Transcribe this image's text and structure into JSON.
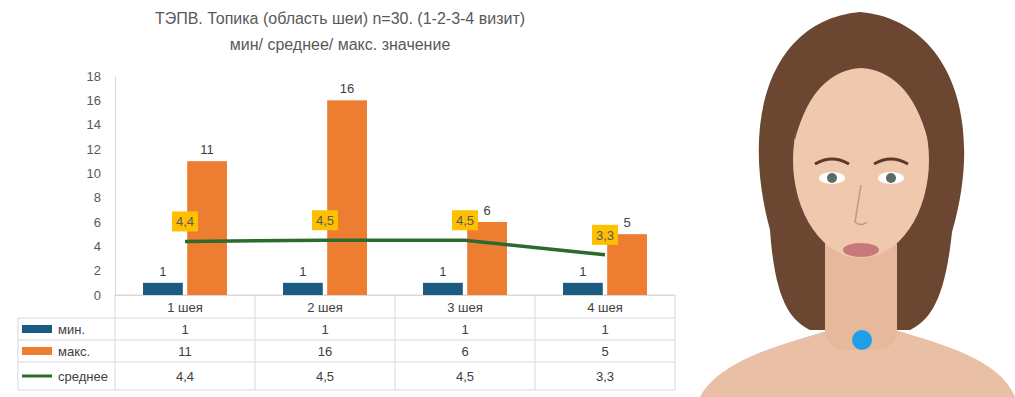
{
  "chart_data": {
    "type": "bar",
    "title": "ТЭПВ. Топика (область шеи) n=30. (1-2-3-4 визит)",
    "subtitle": "мин/ среднее/ макс. значение",
    "categories": [
      "1 шея",
      "2 шея",
      "3 шея",
      "4 шея"
    ],
    "series": [
      {
        "name": "мин.",
        "type": "bar",
        "color": "#1a5b82",
        "values": [
          1,
          1,
          1,
          1
        ]
      },
      {
        "name": "макс.",
        "type": "bar",
        "color": "#ed7d31",
        "values": [
          11,
          16,
          6,
          5
        ]
      },
      {
        "name": "среднее",
        "type": "line",
        "color": "#2d6a2e",
        "values": [
          4.4,
          4.5,
          4.5,
          3.3
        ],
        "value_labels": [
          "4,4",
          "4,5",
          "4,5",
          "3,3"
        ]
      }
    ],
    "ylim": [
      0,
      18
    ],
    "yticks": [
      0,
      2,
      4,
      6,
      8,
      10,
      12,
      14,
      16,
      18
    ],
    "grid": false,
    "data_labels": true
  }
}
